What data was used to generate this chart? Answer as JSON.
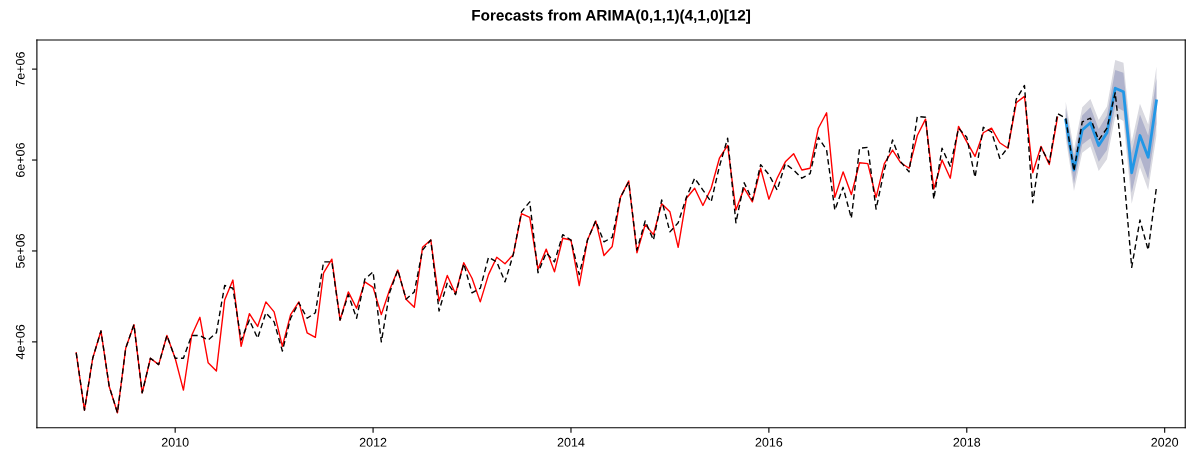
{
  "chart_data": {
    "type": "line",
    "title": "Forecasts from ARIMA(0,1,1)(4,1,0)[12]",
    "x": [
      "2009-01",
      "2009-02",
      "2009-03",
      "2009-04",
      "2009-05",
      "2009-06",
      "2009-07",
      "2009-08",
      "2009-09",
      "2009-10",
      "2009-11",
      "2009-12",
      "2010-01",
      "2010-02",
      "2010-03",
      "2010-04",
      "2010-05",
      "2010-06",
      "2010-07",
      "2010-08",
      "2010-09",
      "2010-10",
      "2010-11",
      "2010-12",
      "2011-01",
      "2011-02",
      "2011-03",
      "2011-04",
      "2011-05",
      "2011-06",
      "2011-07",
      "2011-08",
      "2011-09",
      "2011-10",
      "2011-11",
      "2011-12",
      "2012-01",
      "2012-02",
      "2012-03",
      "2012-04",
      "2012-05",
      "2012-06",
      "2012-07",
      "2012-08",
      "2012-09",
      "2012-10",
      "2012-11",
      "2012-12",
      "2013-01",
      "2013-02",
      "2013-03",
      "2013-04",
      "2013-05",
      "2013-06",
      "2013-07",
      "2013-08",
      "2013-09",
      "2013-10",
      "2013-11",
      "2013-12",
      "2014-01",
      "2014-02",
      "2014-03",
      "2014-04",
      "2014-05",
      "2014-06",
      "2014-07",
      "2014-08",
      "2014-09",
      "2014-10",
      "2014-11",
      "2014-12",
      "2015-01",
      "2015-02",
      "2015-03",
      "2015-04",
      "2015-05",
      "2015-06",
      "2015-07",
      "2015-08",
      "2015-09",
      "2015-10",
      "2015-11",
      "2015-12",
      "2016-01",
      "2016-02",
      "2016-03",
      "2016-04",
      "2016-05",
      "2016-06",
      "2016-07",
      "2016-08",
      "2016-09",
      "2016-10",
      "2016-11",
      "2016-12",
      "2017-01",
      "2017-02",
      "2017-03",
      "2017-04",
      "2017-05",
      "2017-06",
      "2017-07",
      "2017-08",
      "2017-09",
      "2017-10",
      "2017-11",
      "2017-12",
      "2018-01",
      "2018-02",
      "2018-03",
      "2018-04",
      "2018-05",
      "2018-06",
      "2018-07",
      "2018-08",
      "2018-09",
      "2018-10",
      "2018-11",
      "2018-12"
    ],
    "series": [
      {
        "color": "#d9d9e0",
        "x": [
          "2019-01",
          "2019-02",
          "2019-03",
          "2019-04",
          "2019-05",
          "2019-06",
          "2019-07",
          "2019-08",
          "2019-09",
          "2019-10",
          "2019-11",
          "2019-12"
        ],
        "values": [
          null,
          null,
          null,
          null,
          null,
          null,
          null,
          null,
          null,
          null,
          null,
          null
        ],
        "lower": [
          6240000,
          5660000,
          6080000,
          6150000,
          5880000,
          6010000,
          6480000,
          6430000,
          5520000,
          5920000,
          5670000,
          6270000
        ],
        "upper": [
          6640000,
          6120000,
          6580000,
          6670000,
          6440000,
          6590000,
          7100000,
          7070000,
          6200000,
          6620000,
          6390000,
          7030000
        ]
      },
      {
        "color": "#2297e6",
        "x": [
          "2019-01",
          "2019-02",
          "2019-03",
          "2019-04",
          "2019-05",
          "2019-06",
          "2019-07",
          "2019-08",
          "2019-09",
          "2019-10",
          "2019-11",
          "2019-12"
        ],
        "values": [
          6440000,
          5890000,
          6330000,
          6410000,
          6160000,
          6300000,
          6790000,
          6750000,
          5860000,
          6270000,
          6030000,
          6650000
        ]
      },
      {
        "color": "#b0b3cc",
        "x": [
          "2019-01",
          "2019-02",
          "2019-03",
          "2019-04",
          "2019-05",
          "2019-06",
          "2019-07",
          "2019-08",
          "2019-09",
          "2019-10",
          "2019-11",
          "2019-12"
        ],
        "values": [
          null,
          null,
          null,
          null,
          null,
          null,
          null,
          null,
          null,
          null,
          null,
          null
        ],
        "lower": [
          6310000,
          5740000,
          6170000,
          6240000,
          5980000,
          6110000,
          6590000,
          6540000,
          5640000,
          6040000,
          5790000,
          6400000
        ],
        "upper": [
          6570000,
          6040000,
          6490000,
          6580000,
          6340000,
          6490000,
          6990000,
          6960000,
          6080000,
          6500000,
          6270000,
          6900000
        ]
      },
      {
        "color": "#000000",
        "line_style": "dashed",
        "x": [
          "2009-01",
          "2009-02",
          "2009-03",
          "2009-04",
          "2009-05",
          "2009-06",
          "2009-07",
          "2009-08",
          "2009-09",
          "2009-10",
          "2009-11",
          "2009-12",
          "2010-01",
          "2010-02",
          "2010-03",
          "2010-04",
          "2010-05",
          "2010-06",
          "2010-07",
          "2010-08",
          "2010-09",
          "2010-10",
          "2010-11",
          "2010-12",
          "2011-01",
          "2011-02",
          "2011-03",
          "2011-04",
          "2011-05",
          "2011-06",
          "2011-07",
          "2011-08",
          "2011-09",
          "2011-10",
          "2011-11",
          "2011-12",
          "2012-01",
          "2012-02",
          "2012-03",
          "2012-04",
          "2012-05",
          "2012-06",
          "2012-07",
          "2012-08",
          "2012-09",
          "2012-10",
          "2012-11",
          "2012-12",
          "2013-01",
          "2013-02",
          "2013-03",
          "2013-04",
          "2013-05",
          "2013-06",
          "2013-07",
          "2013-08",
          "2013-09",
          "2013-10",
          "2013-11",
          "2013-12",
          "2014-01",
          "2014-02",
          "2014-03",
          "2014-04",
          "2014-05",
          "2014-06",
          "2014-07",
          "2014-08",
          "2014-09",
          "2014-10",
          "2014-11",
          "2014-12",
          "2015-01",
          "2015-02",
          "2015-03",
          "2015-04",
          "2015-05",
          "2015-06",
          "2015-07",
          "2015-08",
          "2015-09",
          "2015-10",
          "2015-11",
          "2015-12",
          "2016-01",
          "2016-02",
          "2016-03",
          "2016-04",
          "2016-05",
          "2016-06",
          "2016-07",
          "2016-08",
          "2016-09",
          "2016-10",
          "2016-11",
          "2016-12",
          "2017-01",
          "2017-02",
          "2017-03",
          "2017-04",
          "2017-05",
          "2017-06",
          "2017-07",
          "2017-08",
          "2017-09",
          "2017-10",
          "2017-11",
          "2017-12",
          "2018-01",
          "2018-02",
          "2018-03",
          "2018-04",
          "2018-05",
          "2018-06",
          "2018-07",
          "2018-08",
          "2018-09",
          "2018-10",
          "2018-11",
          "2018-12",
          "2019-01",
          "2019-02",
          "2019-03",
          "2019-04",
          "2019-05",
          "2019-06",
          "2019-07",
          "2019-08",
          "2019-09",
          "2019-10",
          "2019-11",
          "2019-12"
        ],
        "values": [
          3880000,
          3250000,
          3820000,
          4120000,
          3510000,
          3220000,
          3930000,
          4190000,
          3440000,
          3820000,
          3750000,
          4070000,
          3820000,
          3820000,
          4070000,
          4070000,
          4020000,
          4100000,
          4620000,
          4590000,
          4020000,
          4240000,
          4040000,
          4320000,
          4220000,
          3900000,
          4260000,
          4430000,
          4260000,
          4320000,
          4880000,
          4880000,
          4240000,
          4520000,
          4260000,
          4690000,
          4770000,
          4000000,
          4540000,
          4790000,
          4470000,
          4550000,
          5010000,
          5120000,
          4340000,
          4650000,
          4520000,
          4860000,
          4540000,
          4590000,
          4930000,
          4880000,
          4660000,
          4960000,
          5430000,
          5540000,
          4760000,
          4980000,
          4880000,
          5180000,
          5120000,
          4740000,
          5120000,
          5330000,
          5100000,
          5150000,
          5590000,
          5760000,
          5010000,
          5330000,
          5120000,
          5560000,
          5210000,
          5310000,
          5590000,
          5800000,
          5670000,
          5540000,
          5930000,
          6240000,
          5310000,
          5750000,
          5560000,
          5950000,
          5840000,
          5670000,
          5960000,
          5890000,
          5800000,
          5850000,
          6250000,
          6110000,
          5450000,
          5700000,
          5360000,
          6130000,
          6140000,
          5460000,
          5890000,
          6220000,
          5980000,
          5870000,
          6480000,
          6470000,
          5570000,
          6130000,
          5930000,
          6350000,
          6250000,
          5810000,
          6360000,
          6310000,
          6020000,
          6140000,
          6670000,
          6820000,
          5530000,
          6140000,
          5970000,
          6510000,
          6460000,
          5880000,
          6420000,
          6460000,
          6220000,
          6350000,
          6740000,
          5890000,
          4820000,
          5340000,
          5010000,
          5700000
        ]
      },
      {
        "color": "#ff0000",
        "values": [
          3880000,
          3250000,
          3820000,
          4120000,
          3510000,
          3220000,
          3930000,
          4190000,
          3440000,
          3820000,
          3750000,
          4070000,
          3820000,
          3470000,
          4070000,
          4270000,
          3770000,
          3680000,
          4460000,
          4680000,
          3950000,
          4310000,
          4170000,
          4440000,
          4330000,
          3950000,
          4300000,
          4440000,
          4100000,
          4050000,
          4760000,
          4910000,
          4240000,
          4550000,
          4370000,
          4660000,
          4600000,
          4300000,
          4570000,
          4790000,
          4470000,
          4380000,
          5040000,
          5120000,
          4450000,
          4730000,
          4530000,
          4870000,
          4700000,
          4440000,
          4740000,
          4930000,
          4860000,
          4960000,
          5410000,
          5370000,
          4800000,
          5020000,
          4770000,
          5140000,
          5120000,
          4620000,
          5120000,
          5330000,
          4950000,
          5050000,
          5590000,
          5770000,
          4980000,
          5290000,
          5180000,
          5520000,
          5430000,
          5040000,
          5580000,
          5690000,
          5500000,
          5690000,
          6020000,
          6160000,
          5450000,
          5690000,
          5540000,
          5910000,
          5570000,
          5800000,
          5980000,
          6070000,
          5890000,
          5910000,
          6350000,
          6520000,
          5590000,
          5870000,
          5620000,
          5970000,
          5960000,
          5590000,
          5960000,
          6110000,
          5970000,
          5910000,
          6270000,
          6450000,
          5680000,
          6000000,
          5800000,
          6370000,
          6200000,
          6040000,
          6300000,
          6350000,
          6190000,
          6130000,
          6630000,
          6700000,
          5860000,
          6150000,
          5950000,
          6470000
        ]
      }
    ],
    "xlim": [
      "2008-08-08",
      "2020-03-16"
    ],
    "xticks": [
      "2010",
      "2012",
      "2014",
      "2016",
      "2018",
      "2020"
    ],
    "ylim": [
      3055000,
      7320000
    ],
    "yticks": [
      {
        "value": 4000000,
        "label": "4e+06"
      },
      {
        "value": 5000000,
        "label": "5e+06"
      },
      {
        "value": 6000000,
        "label": "6e+06"
      },
      {
        "value": 7000000,
        "label": "7e+06"
      }
    ],
    "grid": false,
    "marker": "none"
  }
}
